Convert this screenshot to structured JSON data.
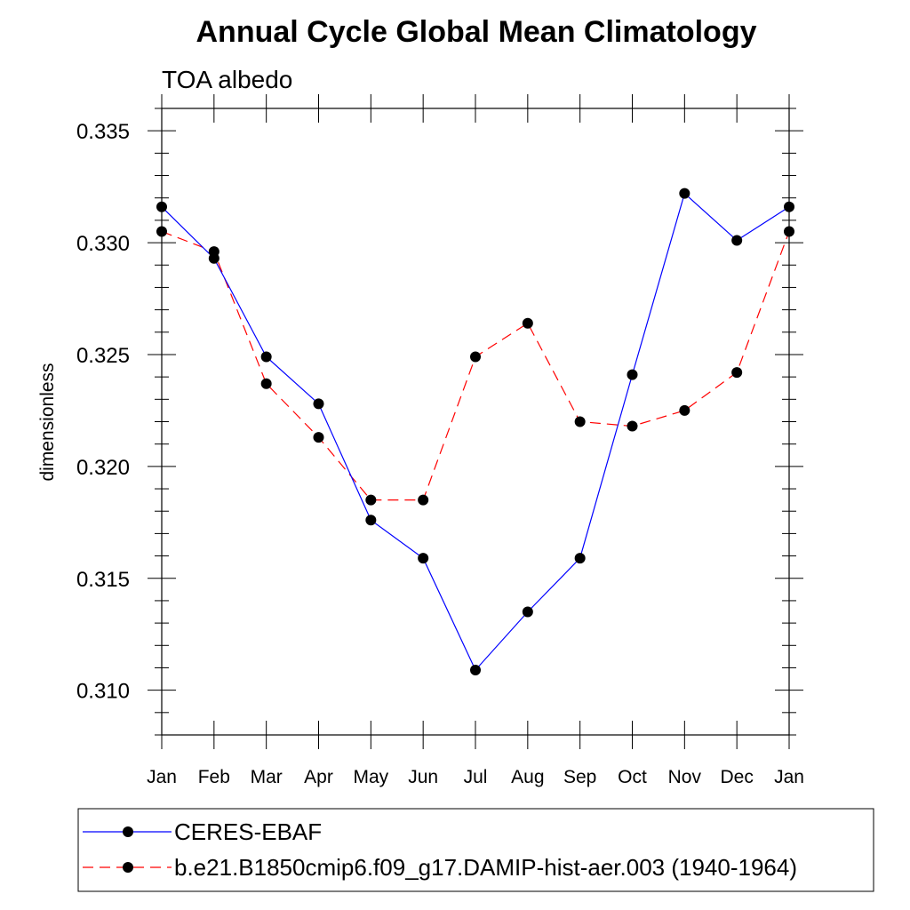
{
  "chart_data": {
    "type": "line",
    "title": "Annual Cycle Global Mean Climatology",
    "subtitle": "TOA albedo",
    "xlabel": "",
    "ylabel": "dimensionless",
    "categories": [
      "Jan",
      "Feb",
      "Mar",
      "Apr",
      "May",
      "Jun",
      "Jul",
      "Aug",
      "Sep",
      "Oct",
      "Nov",
      "Dec",
      "Jan"
    ],
    "ylim": [
      0.308,
      0.336
    ],
    "yticks": [
      "0.310",
      "0.315",
      "0.320",
      "0.325",
      "0.330",
      "0.335"
    ],
    "grid": false,
    "legend_position": "bottom",
    "series": [
      {
        "name": "CERES-EBAF",
        "color": "#0000ff",
        "style": "solid",
        "values": [
          0.3316,
          0.3293,
          0.3249,
          0.3228,
          0.3176,
          0.3159,
          0.3109,
          0.3135,
          0.3159,
          0.3241,
          0.3322,
          0.3301,
          0.3316
        ]
      },
      {
        "name": "b.e21.B1850cmip6.f09_g17.DAMIP-hist-aer.003 (1940-1964)",
        "color": "#ff0000",
        "style": "dashed",
        "values": [
          0.3305,
          0.3296,
          0.3237,
          0.3213,
          0.3185,
          0.3185,
          0.3249,
          0.3264,
          0.322,
          0.3218,
          0.3225,
          0.3242,
          0.3305
        ]
      }
    ]
  }
}
